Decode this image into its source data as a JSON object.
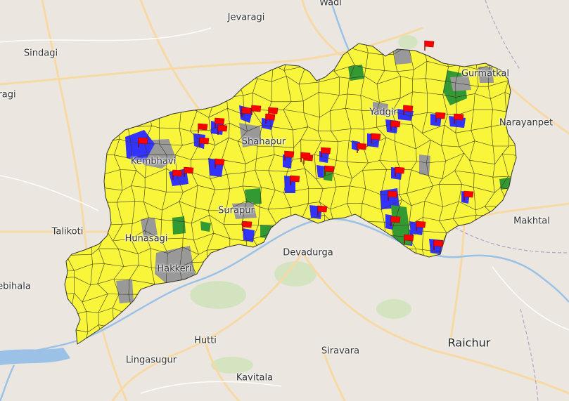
{
  "map": {
    "places": [
      {
        "id": "wadi",
        "name": "Wadi"
      },
      {
        "id": "jevaragi",
        "name": "Jevaragi"
      },
      {
        "id": "sindagi",
        "name": "Sindagi"
      },
      {
        "id": "bagewadi",
        "name": "ragi"
      },
      {
        "id": "kembhavi",
        "name": "Kembhavi"
      },
      {
        "id": "talikoti",
        "name": "Talikoti"
      },
      {
        "id": "hunasagi",
        "name": "Hunasagi"
      },
      {
        "id": "surapur",
        "name": "Surapur"
      },
      {
        "id": "shahapur",
        "name": "Shahapur"
      },
      {
        "id": "yadgir",
        "name": "Yadgir"
      },
      {
        "id": "gurmatkal",
        "name": "Gurmatkal"
      },
      {
        "id": "narayanpet",
        "name": "Narayanpet"
      },
      {
        "id": "makhtal",
        "name": "Makhtal"
      },
      {
        "id": "devadurga",
        "name": "Devadurga"
      },
      {
        "id": "nebihala",
        "name": "ebihala"
      },
      {
        "id": "lingasugur",
        "name": "Lingasugur"
      },
      {
        "id": "hutti",
        "name": "Hutti"
      },
      {
        "id": "siravara",
        "name": "Siravara"
      },
      {
        "id": "raichur",
        "name": "Raichur"
      },
      {
        "id": "kavitala",
        "name": "Kavitala"
      },
      {
        "id": "hunsagi_k",
        "name": "Hakkeri"
      }
    ],
    "legend_colors": {
      "yellow": "#ffff33",
      "blue": "#3333ff",
      "green": "#339933",
      "grey": "#999999",
      "flag": "#ff0000"
    },
    "flag_count": 40
  }
}
